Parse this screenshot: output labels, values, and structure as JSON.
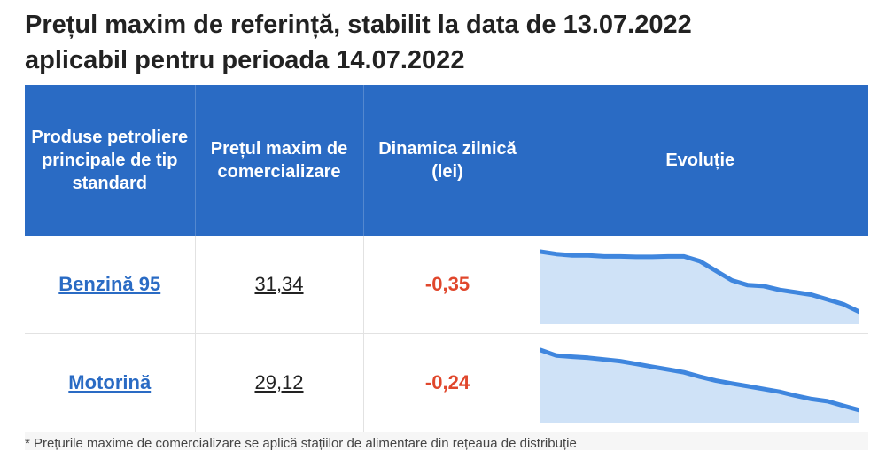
{
  "title_line1": "Prețul maxim de referință, stabilit la data de 13.07.2022",
  "title_line2": "aplicabil pentru perioada 14.07.2022",
  "headers": {
    "product": "Produse petroliere principale de tip standard",
    "price": "Prețul maxim de comercializare",
    "dynamic": "Dinamica zilnică (lei)",
    "evolution": "Evoluție"
  },
  "rows": [
    {
      "product": "Benzină 95",
      "price": "31,34",
      "dynamic": "-0,35",
      "trend": [
        32.6,
        32.55,
        32.52,
        32.52,
        32.5,
        32.5,
        32.49,
        32.49,
        32.5,
        32.5,
        32.4,
        32.2,
        32.0,
        31.9,
        31.88,
        31.8,
        31.75,
        31.7,
        31.6,
        31.5,
        31.34
      ]
    },
    {
      "product": "Motorină",
      "price": "29,12",
      "dynamic": "-0,24",
      "trend": [
        30.2,
        30.1,
        30.08,
        30.06,
        30.03,
        30.0,
        29.95,
        29.9,
        29.85,
        29.8,
        29.72,
        29.65,
        29.6,
        29.55,
        29.5,
        29.45,
        29.38,
        29.32,
        29.28,
        29.2,
        29.12
      ]
    }
  ],
  "footnote": "* Prețurile maxime de comercializare se aplică stațiilor de alimentare din rețeaua de distribuție",
  "colors": {
    "header_bg": "#2a6bc4",
    "link": "#2a6bc4",
    "negative": "#e0472c",
    "spark_line": "#3f86de",
    "spark_fill": "#cfe2f7"
  }
}
